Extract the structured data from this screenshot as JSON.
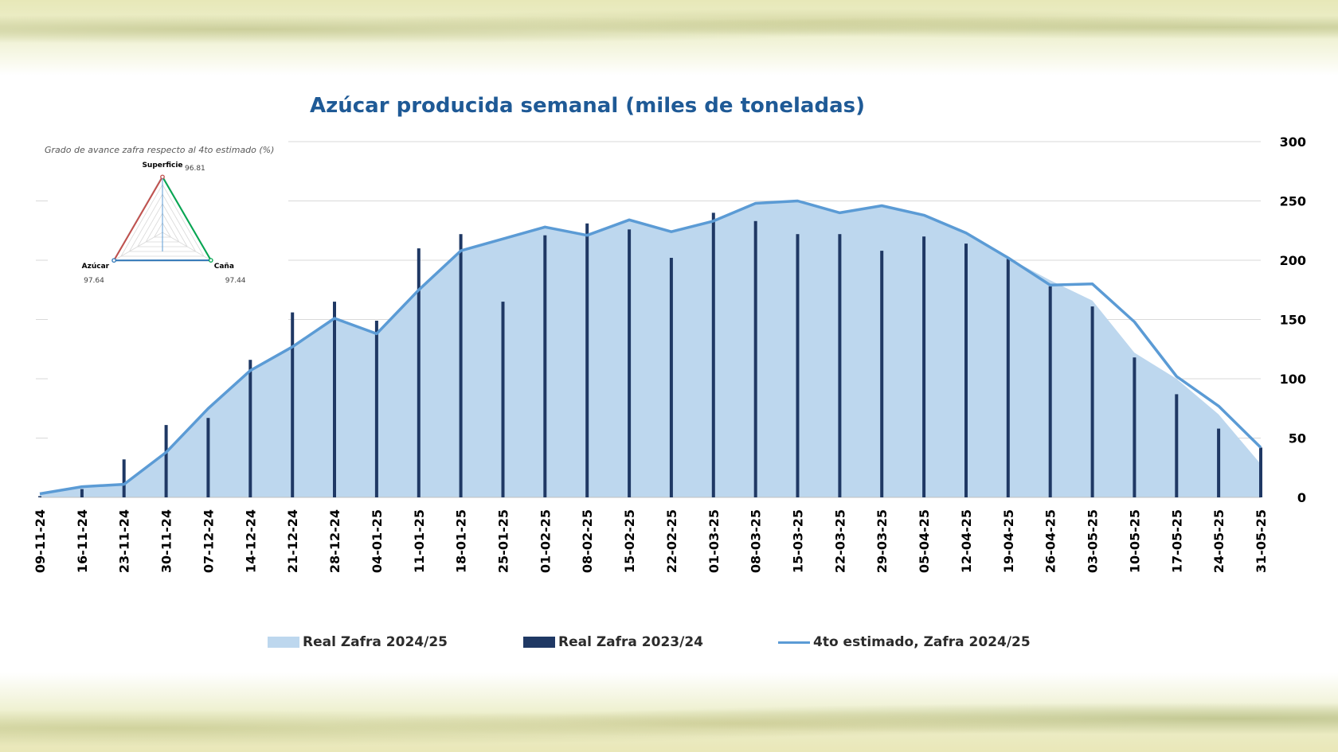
{
  "chart_data": [
    {
      "type": "bar",
      "title": "Azúcar producida semanal (miles de toneladas)",
      "xlabel": "",
      "ylabel": "",
      "ylim": [
        0,
        300
      ],
      "y_ticks": [
        0,
        50,
        100,
        150,
        200,
        250,
        300
      ],
      "y_axis_position": "right",
      "grid": true,
      "legend_position": "bottom",
      "categories": [
        "09-11-24",
        "16-11-24",
        "23-11-24",
        "30-11-24",
        "07-12-24",
        "14-12-24",
        "21-12-24",
        "28-12-24",
        "04-01-25",
        "11-01-25",
        "18-01-25",
        "25-01-25",
        "01-02-25",
        "08-02-25",
        "15-02-25",
        "22-02-25",
        "01-03-25",
        "08-03-25",
        "15-03-25",
        "22-03-25",
        "29-03-25",
        "05-04-25",
        "12-04-25",
        "19-04-25",
        "26-04-25",
        "03-05-25",
        "10-05-25",
        "17-05-25",
        "24-05-25",
        "31-05-25"
      ],
      "series": [
        {
          "name": "Real Zafra 2024/25",
          "type": "area",
          "color": "#bdd7ee",
          "values": [
            3,
            9,
            11,
            38,
            75,
            107,
            127,
            151,
            138,
            175,
            208,
            218,
            228,
            221,
            234,
            224,
            233,
            248,
            250,
            240,
            246,
            238,
            223,
            202,
            183,
            166,
            122,
            100,
            70,
            28
          ]
        },
        {
          "name": "Real Zafra 2023/24",
          "type": "bar",
          "color": "#1f3864",
          "values": [
            1,
            7,
            32,
            61,
            67,
            116,
            156,
            165,
            149,
            210,
            222,
            165,
            221,
            231,
            226,
            202,
            240,
            233,
            222,
            222,
            208,
            220,
            214,
            201,
            178,
            161,
            118,
            87,
            58,
            42
          ]
        },
        {
          "name": "4to estimado, Zafra 2024/25",
          "type": "line",
          "color": "#5b9bd5",
          "values": [
            3,
            9,
            11,
            38,
            75,
            107,
            127,
            151,
            138,
            175,
            208,
            218,
            228,
            221,
            234,
            224,
            233,
            248,
            250,
            240,
            246,
            238,
            223,
            202,
            179,
            180,
            148,
            102,
            77,
            42
          ]
        }
      ]
    },
    {
      "type": "radar",
      "title": "Grado de avance zafra respecto al 4to estimado (%)",
      "categories": [
        "Superficie",
        "Caña",
        "Azúcar"
      ],
      "values": [
        96.81,
        97.44,
        97.64
      ],
      "value_labels": [
        "96.81",
        "97.44",
        "97.64"
      ],
      "colors": [
        "#c0504d",
        "#00a650",
        "#2e75b6"
      ]
    }
  ]
}
